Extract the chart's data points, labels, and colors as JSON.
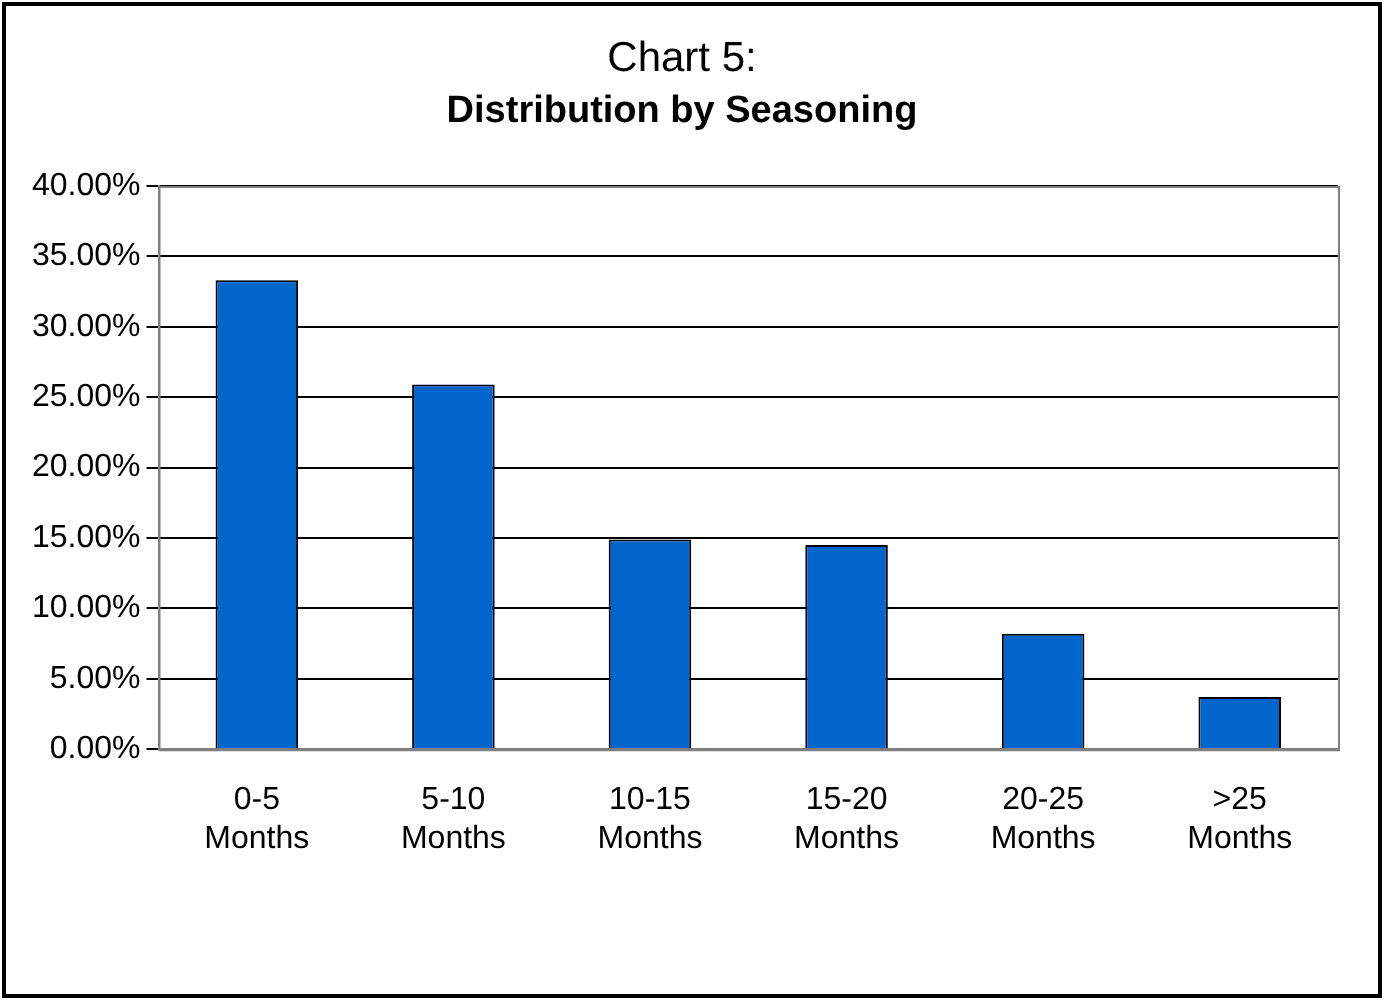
{
  "chart_data": {
    "type": "bar",
    "title": "Chart 5:",
    "subtitle": "Distribution by Seasoning",
    "categories": [
      "0-5 Months",
      "5-10 Months",
      "10-15 Months",
      "15-20 Months",
      "20-25 Months",
      ">25 Months"
    ],
    "values": [
      33.3,
      25.9,
      14.9,
      14.5,
      8.2,
      3.7
    ],
    "color": "#0066cc",
    "ylim": [
      0,
      40
    ],
    "yticks": [
      {
        "value": 0,
        "label": "0.00%"
      },
      {
        "value": 5,
        "label": "5.00%"
      },
      {
        "value": 10,
        "label": "10.00%"
      },
      {
        "value": 15,
        "label": "15.00%"
      },
      {
        "value": 20,
        "label": "20.00%"
      },
      {
        "value": 25,
        "label": "25.00%"
      },
      {
        "value": 30,
        "label": "30.00%"
      },
      {
        "value": 35,
        "label": "35.00%"
      },
      {
        "value": 40,
        "label": "40.00%"
      }
    ],
    "grid": "y",
    "legend": false
  }
}
